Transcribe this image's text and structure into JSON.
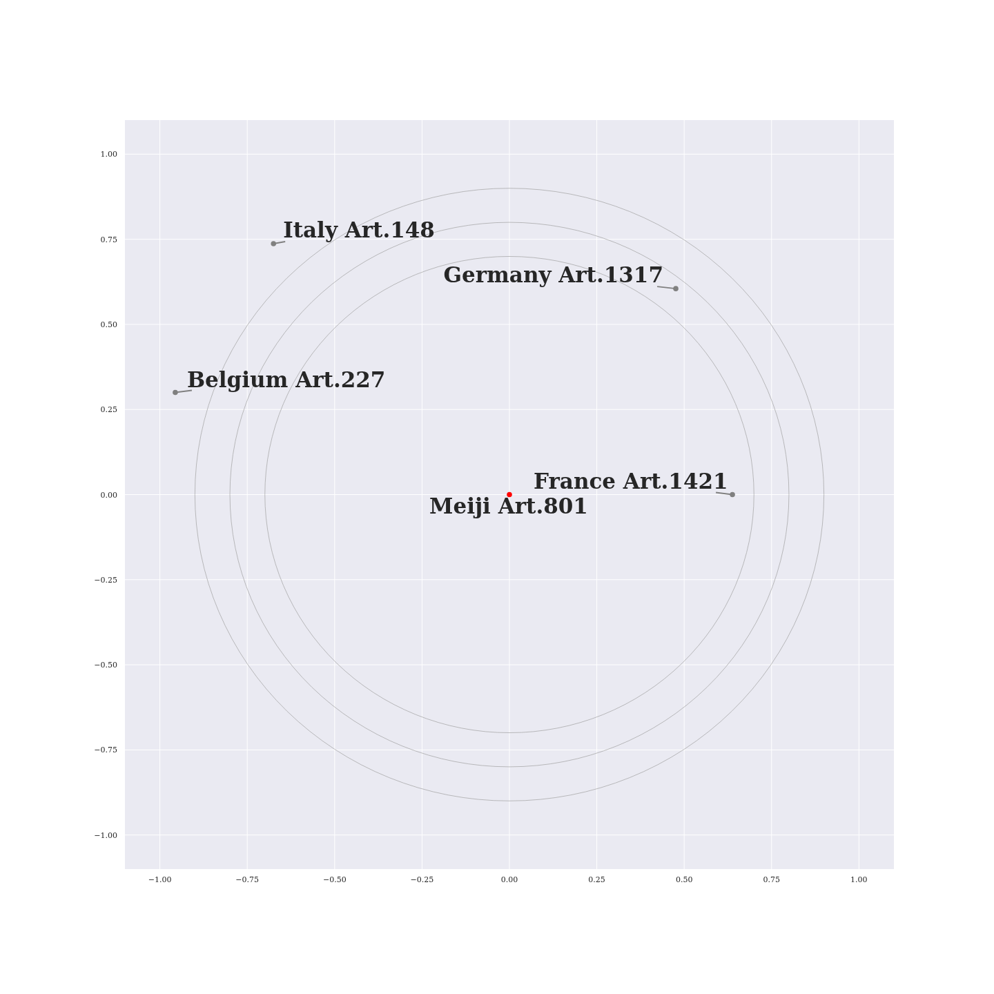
{
  "chart_data": {
    "type": "scatter",
    "grid": true,
    "marker": "circle",
    "xlim": [
      -1.1,
      1.1
    ],
    "ylim": [
      -1.1,
      1.1
    ],
    "xticks": [
      {
        "value": -1,
        "label": "−1.00"
      },
      {
        "value": -0.75,
        "label": "−0.75"
      },
      {
        "value": -0.5,
        "label": "−0.50"
      },
      {
        "value": -0.25,
        "label": "−0.25"
      },
      {
        "value": 0,
        "label": "0.00"
      },
      {
        "value": 0.25,
        "label": "0.25"
      },
      {
        "value": 0.5,
        "label": "0.50"
      },
      {
        "value": 0.75,
        "label": "0.75"
      },
      {
        "value": 1,
        "label": "1.00"
      }
    ],
    "yticks": [
      {
        "value": -1,
        "label": "−1.00"
      },
      {
        "value": -0.75,
        "label": "−0.75"
      },
      {
        "value": -0.5,
        "label": "−0.50"
      },
      {
        "value": -0.25,
        "label": "−0.25"
      },
      {
        "value": 0,
        "label": "0.00"
      },
      {
        "value": 0.25,
        "label": "0.25"
      },
      {
        "value": 0.5,
        "label": "0.50"
      },
      {
        "value": 0.75,
        "label": "0.75"
      },
      {
        "value": 1,
        "label": "1.00"
      }
    ],
    "series": [
      {
        "color": "#808080",
        "x": [
          -0.675,
          0.476,
          -0.956,
          0.638
        ],
        "values": [
          0.737,
          0.605,
          0.3,
          0
        ]
      },
      {
        "color": "#ff0000",
        "x": [
          0
        ],
        "values": [
          0
        ]
      }
    ],
    "annotations": [
      {
        "text": "Italy Art.148",
        "x": -0.675,
        "y": 0.737
      },
      {
        "text": "Germany Art.1317",
        "x": 0.476,
        "y": 0.605
      },
      {
        "text": "Belgium Art.227",
        "x": -0.956,
        "y": 0.3
      },
      {
        "text": "France Art.1421",
        "x": 0.638,
        "y": 0
      },
      {
        "text": "Meiji Art.801",
        "x": 0,
        "y": 0
      }
    ]
  }
}
